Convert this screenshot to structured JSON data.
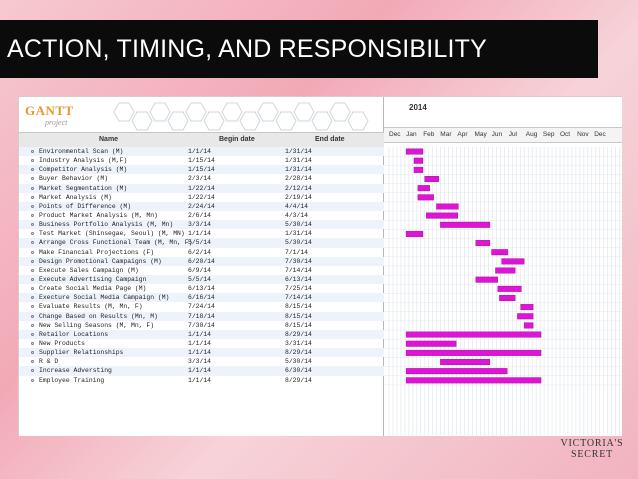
{
  "slide": {
    "title": "ACTION, TIMING, AND RESPONSIBILITY",
    "brand": {
      "line1": "VICTORIA'S",
      "line2": "SECRET"
    }
  },
  "app": {
    "logo_text": "GANTT",
    "logo_sub": "project",
    "columns": {
      "name": "Name",
      "begin": "Begin date",
      "end": "End date"
    },
    "year": "2014",
    "months": [
      "Dec",
      "Jan",
      "Feb",
      "Mar",
      "Apr",
      "May",
      "Jun",
      "Jul",
      "Aug",
      "Sep",
      "Oct",
      "Nov",
      "Dec"
    ]
  },
  "tasks": [
    {
      "name": "Environmental Scan (M)",
      "begin": "1/1/14",
      "end": "1/31/14"
    },
    {
      "name": "Industry Analysis (M,F)",
      "begin": "1/15/14",
      "end": "1/31/14"
    },
    {
      "name": "Competitor Analysis (M)",
      "begin": "1/15/14",
      "end": "1/31/14"
    },
    {
      "name": "Buyer Behavior (M)",
      "begin": "2/3/14",
      "end": "2/28/14"
    },
    {
      "name": "Market Segmentation (M)",
      "begin": "1/22/14",
      "end": "2/12/14"
    },
    {
      "name": "Market Analysis (M)",
      "begin": "1/22/14",
      "end": "2/19/14"
    },
    {
      "name": "Points of Difference (M)",
      "begin": "2/24/14",
      "end": "4/4/14"
    },
    {
      "name": "Product Market Analysis (M, Mn)",
      "begin": "2/6/14",
      "end": "4/3/14"
    },
    {
      "name": "Business Portfolio Analysis (M, Mn)",
      "begin": "3/3/14",
      "end": "5/30/14"
    },
    {
      "name": "Test Market (Shinsegae, Seoul) (M, MN)",
      "begin": "1/1/14",
      "end": "1/31/14"
    },
    {
      "name": "Arrange Cross Functional Team (M, Mn, F)",
      "begin": "5/5/14",
      "end": "5/30/14"
    },
    {
      "name": "Make Financial Projections (F)",
      "begin": "6/2/14",
      "end": "7/1/14"
    },
    {
      "name": "Design Promotional Campaigns (M)",
      "begin": "6/20/14",
      "end": "7/30/14"
    },
    {
      "name": "Execute Sales Campaign (M)",
      "begin": "6/9/14",
      "end": "7/14/14"
    },
    {
      "name": "Execute Advertising Campaign",
      "begin": "5/5/14",
      "end": "6/13/14"
    },
    {
      "name": "Create Social Media Page (M)",
      "begin": "6/13/14",
      "end": "7/25/14"
    },
    {
      "name": "Execture Social Media Campaign (M)",
      "begin": "6/16/14",
      "end": "7/14/14"
    },
    {
      "name": "Evaluate Results (M, Mn, F)",
      "begin": "7/24/14",
      "end": "8/15/14"
    },
    {
      "name": "Change Based on Results (Mn, M)",
      "begin": "7/18/14",
      "end": "8/15/14"
    },
    {
      "name": "New Selling Seasons (M, Mn, F)",
      "begin": "7/30/14",
      "end": "8/15/14"
    },
    {
      "name": "Retailor Locations",
      "begin": "1/1/14",
      "end": "8/29/14"
    },
    {
      "name": "New Products",
      "begin": "1/1/14",
      "end": "3/31/14"
    },
    {
      "name": "Supplier Relationships",
      "begin": "1/1/14",
      "end": "8/29/14"
    },
    {
      "name": "R & D",
      "begin": "3/3/14",
      "end": "5/30/14"
    },
    {
      "name": "Increase Adversting",
      "begin": "1/1/14",
      "end": "6/30/14"
    },
    {
      "name": "Employee Training",
      "begin": "1/1/14",
      "end": "8/29/14"
    }
  ],
  "colors": {
    "bar": "#e014d6",
    "bar_border": "#8a0c84",
    "title_bg": "#0b0b0b"
  }
}
